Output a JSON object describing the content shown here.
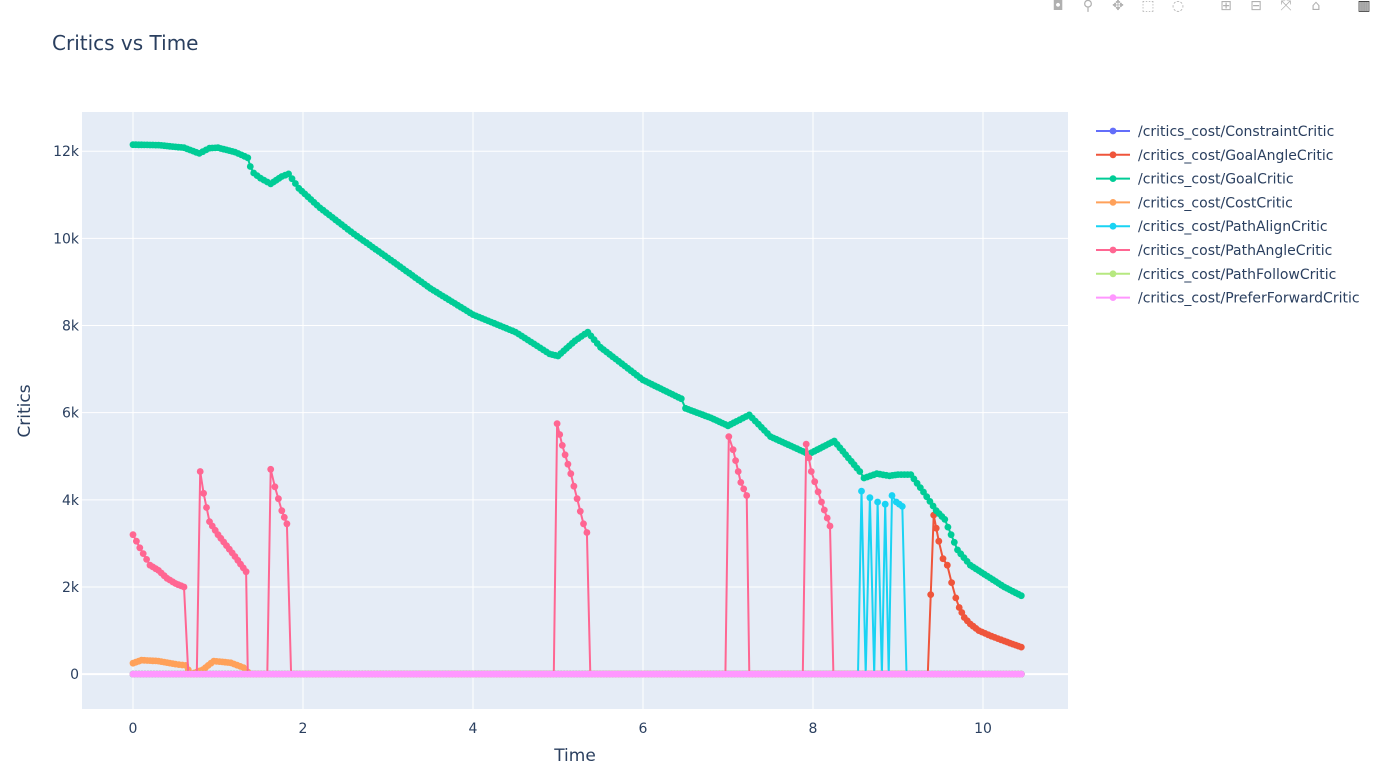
{
  "modebar": {
    "items": [
      {
        "name": "camera-icon",
        "glyph": "◘"
      },
      {
        "name": "zoom-icon",
        "glyph": "⚲"
      },
      {
        "name": "pan-icon",
        "glyph": "✥"
      },
      {
        "name": "box-select-icon",
        "glyph": "⬚"
      },
      {
        "name": "lasso-icon",
        "glyph": "◌"
      },
      {
        "name": "zoom-in-icon",
        "glyph": "⊞"
      },
      {
        "name": "zoom-out-icon",
        "glyph": "⊟"
      },
      {
        "name": "autoscale-icon",
        "glyph": "⤧"
      },
      {
        "name": "reset-axes-icon",
        "glyph": "⌂"
      },
      {
        "name": "plotly-logo-icon",
        "glyph": "▥"
      }
    ]
  },
  "chart_data": {
    "type": "line",
    "title": "Critics vs Time",
    "xlabel": "Time",
    "ylabel": "Critics",
    "xlim": [
      -0.6,
      11.0
    ],
    "ylim": [
      -800,
      12900
    ],
    "x_ticks": [
      0,
      2,
      4,
      6,
      8,
      10
    ],
    "y_ticks": [
      0,
      2000,
      4000,
      6000,
      8000,
      10000,
      12000
    ],
    "y_tick_labels": [
      "0",
      "2k",
      "4k",
      "6k",
      "8k",
      "10k",
      "12k"
    ],
    "grid": true,
    "legend_position": "right",
    "background": "#e5ecf6",
    "series": [
      {
        "name": "/critics_cost/ConstraintCritic",
        "color": "#636efa",
        "points": [
          [
            0,
            0
          ],
          [
            10.45,
            0
          ]
        ]
      },
      {
        "name": "/critics_cost/GoalAngleCritic",
        "color": "#EF553B",
        "points": [
          [
            0,
            0
          ],
          [
            9.35,
            0
          ],
          [
            9.42,
            3650
          ],
          [
            9.48,
            3050
          ],
          [
            9.53,
            2650
          ],
          [
            9.58,
            2500
          ],
          [
            9.63,
            2100
          ],
          [
            9.68,
            1750
          ],
          [
            9.72,
            1530
          ],
          [
            9.78,
            1300
          ],
          [
            9.85,
            1150
          ],
          [
            9.95,
            1000
          ],
          [
            10.1,
            870
          ],
          [
            10.25,
            760
          ],
          [
            10.45,
            620
          ]
        ]
      },
      {
        "name": "/critics_cost/GoalCritic",
        "color": "#00cc96",
        "points": [
          [
            0,
            12150
          ],
          [
            0.3,
            12140
          ],
          [
            0.6,
            12080
          ],
          [
            0.78,
            11950
          ],
          [
            0.9,
            12070
          ],
          [
            1.0,
            12080
          ],
          [
            1.2,
            11980
          ],
          [
            1.35,
            11850
          ],
          [
            1.38,
            11650
          ],
          [
            1.42,
            11500
          ],
          [
            1.5,
            11380
          ],
          [
            1.62,
            11250
          ],
          [
            1.75,
            11420
          ],
          [
            1.83,
            11480
          ],
          [
            1.95,
            11150
          ],
          [
            2.2,
            10700
          ],
          [
            2.6,
            10100
          ],
          [
            3.0,
            9550
          ],
          [
            3.5,
            8850
          ],
          [
            4.0,
            8250
          ],
          [
            4.5,
            7850
          ],
          [
            4.9,
            7350
          ],
          [
            5.0,
            7300
          ],
          [
            5.2,
            7650
          ],
          [
            5.35,
            7850
          ],
          [
            5.5,
            7500
          ],
          [
            6.0,
            6750
          ],
          [
            6.45,
            6320
          ],
          [
            6.5,
            6100
          ],
          [
            6.8,
            5880
          ],
          [
            7.0,
            5700
          ],
          [
            7.1,
            5800
          ],
          [
            7.25,
            5950
          ],
          [
            7.5,
            5450
          ],
          [
            7.95,
            5050
          ],
          [
            8.25,
            5350
          ],
          [
            8.55,
            4650
          ],
          [
            8.6,
            4500
          ],
          [
            8.75,
            4600
          ],
          [
            8.9,
            4550
          ],
          [
            9.0,
            4580
          ],
          [
            9.15,
            4580
          ],
          [
            9.3,
            4180
          ],
          [
            9.45,
            3750
          ],
          [
            9.55,
            3550
          ],
          [
            9.7,
            2850
          ],
          [
            9.85,
            2500
          ],
          [
            10.05,
            2250
          ],
          [
            10.25,
            2000
          ],
          [
            10.45,
            1800
          ]
        ]
      },
      {
        "name": "/critics_cost/CostCritic",
        "color": "#FFA15A",
        "points": [
          [
            0,
            250
          ],
          [
            0.1,
            320
          ],
          [
            0.3,
            300
          ],
          [
            0.5,
            230
          ],
          [
            0.62,
            200
          ],
          [
            0.68,
            0
          ],
          [
            0.82,
            100
          ],
          [
            0.95,
            300
          ],
          [
            1.15,
            260
          ],
          [
            1.3,
            150
          ],
          [
            1.35,
            50
          ],
          [
            1.4,
            0
          ],
          [
            10.45,
            0
          ]
        ]
      },
      {
        "name": "/critics_cost/PathAlignCritic",
        "color": "#19d3f3",
        "points": [
          [
            0,
            0
          ],
          [
            8.53,
            0
          ],
          [
            8.57,
            4200
          ],
          [
            8.62,
            0
          ],
          [
            8.67,
            4050
          ],
          [
            8.72,
            0
          ],
          [
            8.76,
            3950
          ],
          [
            8.81,
            0
          ],
          [
            8.85,
            3900
          ],
          [
            8.89,
            0
          ],
          [
            8.93,
            4100
          ],
          [
            8.98,
            3950
          ],
          [
            9.05,
            3850
          ],
          [
            9.1,
            0
          ],
          [
            10.45,
            0
          ]
        ]
      },
      {
        "name": "/critics_cost/PathAngleCritic",
        "color": "#FF6692",
        "points": [
          [
            0,
            3200
          ],
          [
            0.08,
            2900
          ],
          [
            0.2,
            2500
          ],
          [
            0.3,
            2380
          ],
          [
            0.4,
            2200
          ],
          [
            0.5,
            2080
          ],
          [
            0.6,
            2000
          ],
          [
            0.65,
            0
          ],
          [
            0.75,
            0
          ],
          [
            0.79,
            4650
          ],
          [
            0.83,
            4150
          ],
          [
            0.9,
            3500
          ],
          [
            1.0,
            3200
          ],
          [
            1.2,
            2700
          ],
          [
            1.33,
            2350
          ],
          [
            1.35,
            0
          ],
          [
            1.58,
            0
          ],
          [
            1.62,
            4700
          ],
          [
            1.67,
            4300
          ],
          [
            1.75,
            3750
          ],
          [
            1.81,
            3450
          ],
          [
            1.86,
            0
          ],
          [
            4.95,
            0
          ],
          [
            4.99,
            5750
          ],
          [
            5.05,
            5250
          ],
          [
            5.15,
            4600
          ],
          [
            5.3,
            3450
          ],
          [
            5.34,
            3250
          ],
          [
            5.38,
            0
          ],
          [
            6.97,
            0
          ],
          [
            7.01,
            5450
          ],
          [
            7.06,
            5150
          ],
          [
            7.15,
            4400
          ],
          [
            7.22,
            4100
          ],
          [
            7.25,
            0
          ],
          [
            7.88,
            0
          ],
          [
            7.92,
            5280
          ],
          [
            7.98,
            4650
          ],
          [
            8.1,
            3950
          ],
          [
            8.2,
            3400
          ],
          [
            8.24,
            0
          ],
          [
            10.45,
            0
          ]
        ]
      },
      {
        "name": "/critics_cost/PathFollowCritic",
        "color": "#B6E880",
        "points": [
          [
            0,
            0
          ],
          [
            10.45,
            0
          ]
        ]
      },
      {
        "name": "/critics_cost/PreferForwardCritic",
        "color": "#FF97FF",
        "points": [
          [
            0,
            0
          ],
          [
            10.45,
            0
          ]
        ]
      }
    ]
  }
}
